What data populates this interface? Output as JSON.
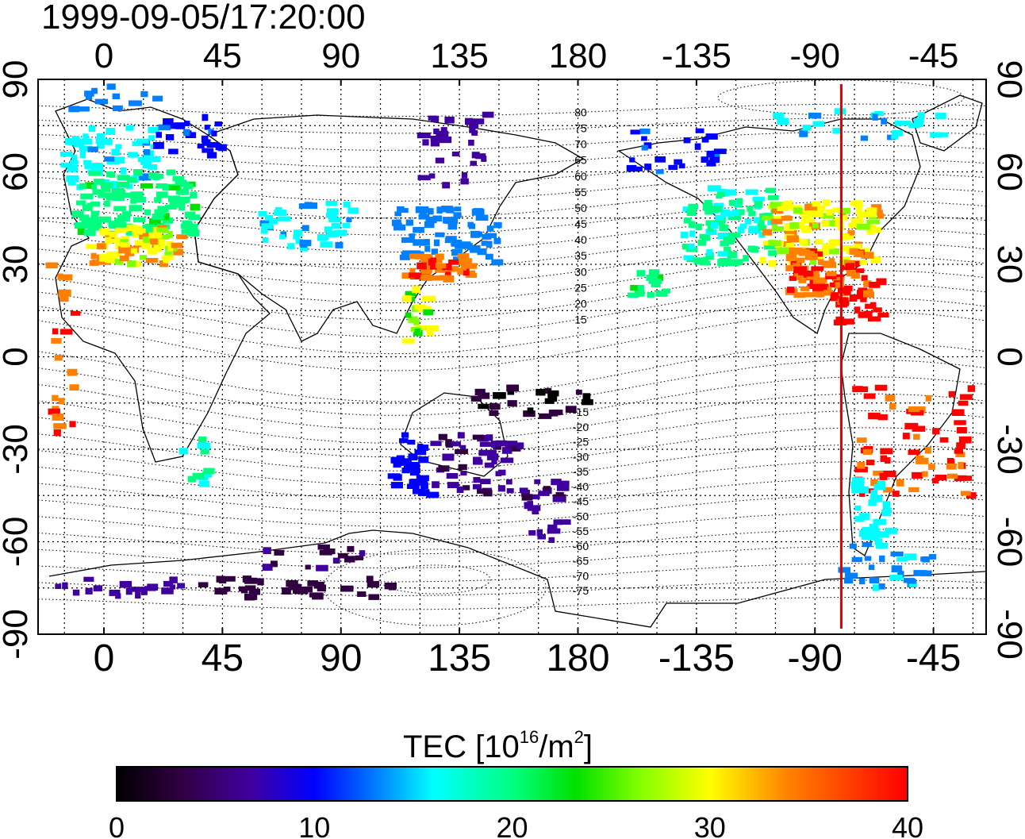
{
  "timestamp": "1999-09-05/17:20:00",
  "map": {
    "lon_ticks": [
      0,
      45,
      90,
      135,
      180,
      -135,
      -90,
      -45
    ],
    "lat_ticks": [
      90,
      60,
      30,
      0,
      -30,
      -60,
      -90
    ],
    "lon_range": [
      -25,
      335
    ],
    "lat_range": [
      -90,
      90
    ],
    "grid": "dotted, every 15 degrees",
    "terminator_longitude": -80,
    "terminator_color": "#e00000",
    "magnetic_latitude_labels": [
      "80",
      "75",
      "70",
      "65",
      "60",
      "55",
      "50",
      "45",
      "40",
      "35",
      "30",
      "25",
      "20",
      "15",
      "-15",
      "-20",
      "-25",
      "-30",
      "-35",
      "-40",
      "-45",
      "-50",
      "-55",
      "-60",
      "-65",
      "-70",
      "-75"
    ]
  },
  "colorbar": {
    "label_prefix": "TEC  [10",
    "label_sup1": "16",
    "label_mid": "/m",
    "label_sup2": "2",
    "label_suffix": "]",
    "min": 0,
    "max": 40,
    "tick_labels": [
      "0",
      "10",
      "20",
      "30",
      "40"
    ],
    "colors": [
      "#000000",
      "#300040",
      "#4000a0",
      "#0000ff",
      "#0080ff",
      "#00ffff",
      "#00ff80",
      "#00e000",
      "#80ff00",
      "#ffff00",
      "#ff8000",
      "#ff0000"
    ]
  }
}
